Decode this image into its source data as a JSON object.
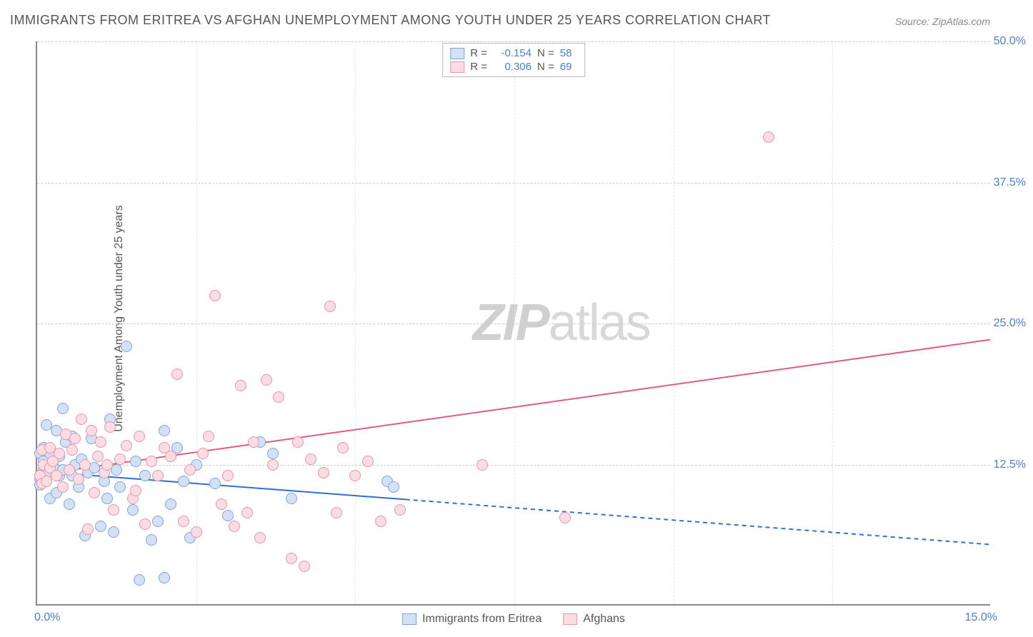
{
  "title": "IMMIGRANTS FROM ERITREA VS AFGHAN UNEMPLOYMENT AMONG YOUTH UNDER 25 YEARS CORRELATION CHART",
  "source": "Source: ZipAtlas.com",
  "ylabel": "Unemployment Among Youth under 25 years",
  "watermark_a": "ZIP",
  "watermark_b": "atlas",
  "chart": {
    "type": "scatter",
    "xlim": [
      0,
      15
    ],
    "ylim": [
      0,
      50
    ],
    "xtick_labels": {
      "min": "0.0%",
      "max": "15.0%"
    },
    "ytick_positions": [
      12.5,
      25.0,
      37.5,
      50.0
    ],
    "ytick_labels": [
      "12.5%",
      "25.0%",
      "37.5%",
      "50.0%"
    ],
    "xtick_minor": [
      2.5,
      5.0,
      7.5,
      10.0,
      12.5
    ],
    "background_color": "#ffffff",
    "grid_color": "#cccccc",
    "axis_color": "#888888",
    "label_color": "#4a7fd0",
    "watermark_color": "#d8d8d8"
  },
  "series": {
    "blue": {
      "label": "Immigrants from Eritrea",
      "r_label": "R = ",
      "r_value": "-0.154",
      "n_label": "N = ",
      "n_value": "58",
      "fill": "#d4e1f4",
      "stroke": "#7ea5dc",
      "line_color": "#2f6fd0",
      "trend": {
        "x1": 0,
        "y1": 11.8,
        "x2": 5.8,
        "y2": 9.3,
        "dashed_to_x": 15,
        "dashed_to_y": 5.3
      },
      "points": [
        [
          0.05,
          13.5
        ],
        [
          0.05,
          11.2
        ],
        [
          0.05,
          10.7
        ],
        [
          0.1,
          14.0
        ],
        [
          0.1,
          12.8
        ],
        [
          0.1,
          11.0
        ],
        [
          0.1,
          12.0
        ],
        [
          0.15,
          16.0
        ],
        [
          0.15,
          11.8
        ],
        [
          0.2,
          13.5
        ],
        [
          0.2,
          9.5
        ],
        [
          0.25,
          12.5
        ],
        [
          0.3,
          15.5
        ],
        [
          0.3,
          12.0
        ],
        [
          0.3,
          10.0
        ],
        [
          0.35,
          13.2
        ],
        [
          0.35,
          11.5
        ],
        [
          0.4,
          17.5
        ],
        [
          0.4,
          12.0
        ],
        [
          0.45,
          14.5
        ],
        [
          0.5,
          9.0
        ],
        [
          0.55,
          15.0
        ],
        [
          0.55,
          11.5
        ],
        [
          0.6,
          12.5
        ],
        [
          0.65,
          10.5
        ],
        [
          0.7,
          13.0
        ],
        [
          0.75,
          6.2
        ],
        [
          0.8,
          11.8
        ],
        [
          0.85,
          14.8
        ],
        [
          0.9,
          12.2
        ],
        [
          1.0,
          7.0
        ],
        [
          1.05,
          11.0
        ],
        [
          1.1,
          9.5
        ],
        [
          1.15,
          16.5
        ],
        [
          1.2,
          6.5
        ],
        [
          1.25,
          12.0
        ],
        [
          1.3,
          10.5
        ],
        [
          1.4,
          23.0
        ],
        [
          1.5,
          8.5
        ],
        [
          1.55,
          12.8
        ],
        [
          1.6,
          2.3
        ],
        [
          1.7,
          11.5
        ],
        [
          1.8,
          5.8
        ],
        [
          1.9,
          7.5
        ],
        [
          2.0,
          2.5
        ],
        [
          2.0,
          15.5
        ],
        [
          2.1,
          9.0
        ],
        [
          2.2,
          14.0
        ],
        [
          2.3,
          11.0
        ],
        [
          2.4,
          6.0
        ],
        [
          2.5,
          12.5
        ],
        [
          2.8,
          10.8
        ],
        [
          3.0,
          8.0
        ],
        [
          3.5,
          14.5
        ],
        [
          3.7,
          13.5
        ],
        [
          4.0,
          9.5
        ],
        [
          5.5,
          11.0
        ],
        [
          5.6,
          10.5
        ]
      ]
    },
    "pink": {
      "label": "Afghans",
      "r_label": "R = ",
      "r_value": "0.306",
      "n_label": "N = ",
      "n_value": "69",
      "fill": "#fadce3",
      "stroke": "#e995ab",
      "line_color": "#e15b80",
      "trend": {
        "x1": 0,
        "y1": 11.5,
        "x2": 15,
        "y2": 23.5
      },
      "points": [
        [
          0.05,
          11.5
        ],
        [
          0.08,
          13.8
        ],
        [
          0.08,
          10.8
        ],
        [
          0.1,
          12.5
        ],
        [
          0.15,
          11.0
        ],
        [
          0.2,
          12.2
        ],
        [
          0.2,
          14.0
        ],
        [
          0.25,
          12.8
        ],
        [
          0.3,
          11.5
        ],
        [
          0.35,
          13.5
        ],
        [
          0.4,
          10.5
        ],
        [
          0.45,
          15.2
        ],
        [
          0.5,
          12.0
        ],
        [
          0.55,
          13.8
        ],
        [
          0.6,
          14.8
        ],
        [
          0.65,
          11.2
        ],
        [
          0.7,
          16.5
        ],
        [
          0.75,
          12.5
        ],
        [
          0.8,
          6.8
        ],
        [
          0.85,
          15.5
        ],
        [
          0.9,
          10.0
        ],
        [
          0.95,
          13.2
        ],
        [
          1.0,
          14.5
        ],
        [
          1.05,
          11.8
        ],
        [
          1.1,
          12.5
        ],
        [
          1.15,
          15.8
        ],
        [
          1.2,
          8.5
        ],
        [
          1.3,
          13.0
        ],
        [
          1.4,
          14.2
        ],
        [
          1.5,
          9.5
        ],
        [
          1.55,
          10.2
        ],
        [
          1.6,
          15.0
        ],
        [
          1.7,
          7.2
        ],
        [
          1.8,
          12.8
        ],
        [
          1.9,
          11.5
        ],
        [
          2.0,
          14.0
        ],
        [
          2.1,
          13.2
        ],
        [
          2.2,
          20.5
        ],
        [
          2.3,
          7.5
        ],
        [
          2.4,
          12.0
        ],
        [
          2.5,
          6.5
        ],
        [
          2.6,
          13.5
        ],
        [
          2.7,
          15.0
        ],
        [
          2.8,
          27.5
        ],
        [
          2.9,
          9.0
        ],
        [
          3.0,
          11.5
        ],
        [
          3.1,
          7.0
        ],
        [
          3.2,
          19.5
        ],
        [
          3.3,
          8.2
        ],
        [
          3.4,
          14.5
        ],
        [
          3.5,
          6.0
        ],
        [
          3.6,
          20.0
        ],
        [
          3.7,
          12.5
        ],
        [
          3.8,
          18.5
        ],
        [
          4.0,
          4.2
        ],
        [
          4.1,
          14.5
        ],
        [
          4.2,
          3.5
        ],
        [
          4.3,
          13.0
        ],
        [
          4.5,
          11.8
        ],
        [
          4.6,
          26.5
        ],
        [
          4.7,
          8.2
        ],
        [
          4.8,
          14.0
        ],
        [
          5.0,
          11.5
        ],
        [
          5.2,
          12.8
        ],
        [
          5.4,
          7.5
        ],
        [
          5.7,
          8.5
        ],
        [
          7.0,
          12.5
        ],
        [
          8.3,
          7.8
        ],
        [
          11.5,
          41.5
        ]
      ]
    }
  }
}
